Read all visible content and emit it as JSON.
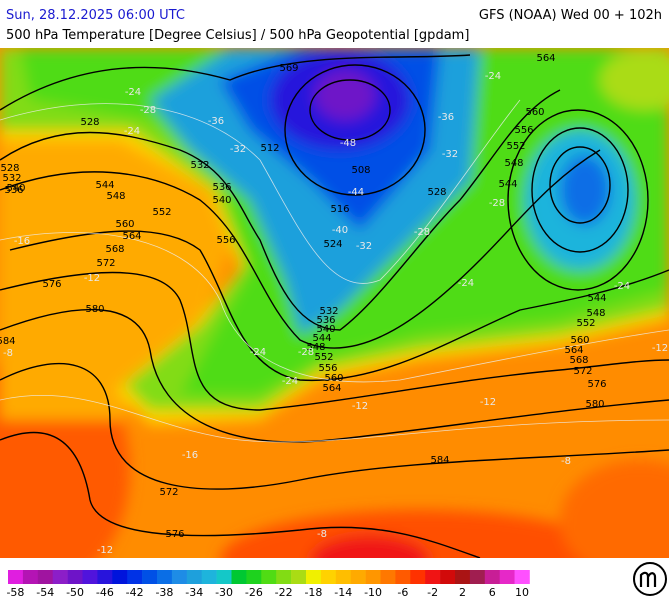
{
  "header": {
    "datetime": "Sun, 28.12.2025 06:00 UTC",
    "model": "GFS (NOAA) Wed 00 + 102h",
    "subtitle": "500 hPa Temperature [Degree Celsius] / 500 hPa Geopotential [gpdam]"
  },
  "map": {
    "geopotential_labels": [
      528,
      532,
      536,
      540,
      528,
      532,
      536,
      540,
      544,
      548,
      552,
      556,
      560,
      564,
      568,
      572,
      576,
      580,
      584,
      569,
      512,
      508,
      516,
      524,
      528,
      532,
      536,
      540,
      544,
      548,
      552,
      556,
      560,
      564,
      584,
      572,
      576,
      564,
      560,
      556,
      552,
      548,
      544,
      544,
      548,
      552,
      560,
      564,
      568,
      572,
      576,
      580
    ],
    "temperature_labels": [
      -24,
      -28,
      -24,
      -36,
      -32,
      -48,
      -44,
      -40,
      -32,
      -36,
      -32,
      -28,
      -28,
      -24,
      -16,
      -12,
      -8,
      -24,
      -28,
      -24,
      -16,
      -12,
      -8,
      -12,
      -24,
      -24,
      -12,
      -8,
      -12
    ]
  },
  "colorbar": {
    "colors": [
      "#e01ee0",
      "#b414b4",
      "#a014a0",
      "#8c1ec8",
      "#6e14c8",
      "#5014dc",
      "#2814dc",
      "#0014dc",
      "#0032e6",
      "#0050e6",
      "#0a6ee6",
      "#1e8ce6",
      "#1ea0dc",
      "#1eb4dc",
      "#14c8c8",
      "#00c832",
      "#1ed21e",
      "#50dc14",
      "#82dc14",
      "#aadc14",
      "#f0f000",
      "#ffd200",
      "#ffbe00",
      "#ffaa00",
      "#ff9600",
      "#ff7800",
      "#ff5a00",
      "#ff3200",
      "#f01414",
      "#d20a0a",
      "#aa1414",
      "#a01e50",
      "#c81e96",
      "#e628c8",
      "#ff50ff"
    ],
    "labels": [
      -58,
      -54,
      -50,
      -46,
      -42,
      -38,
      -34,
      -30,
      -26,
      -22,
      -18,
      -14,
      -10,
      -6,
      -2,
      2,
      6,
      10
    ]
  }
}
